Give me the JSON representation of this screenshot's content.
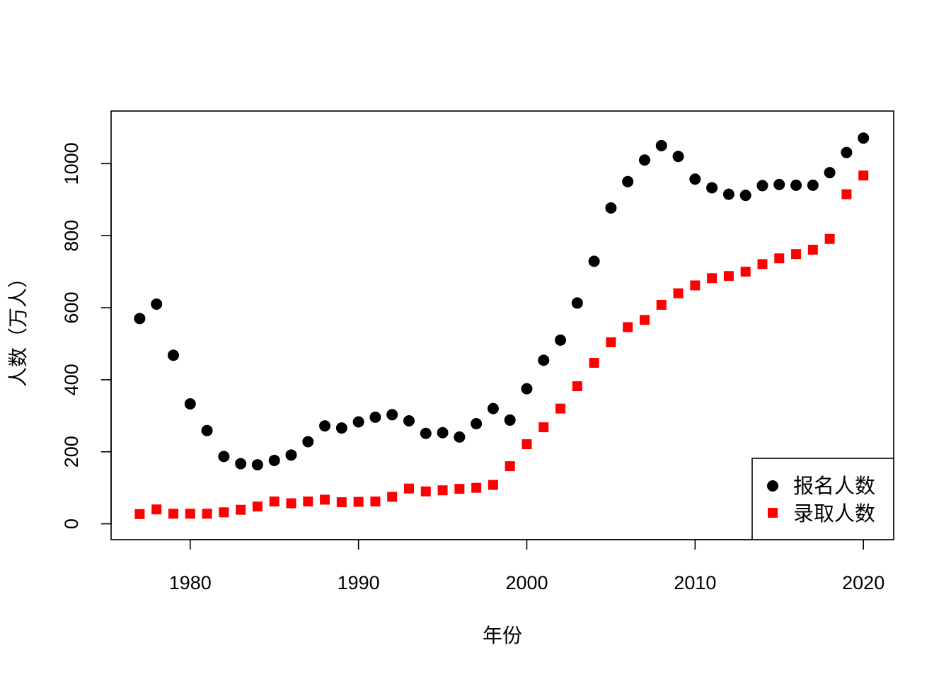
{
  "chart_data": {
    "type": "scatter",
    "title": "",
    "xlabel": "年份",
    "ylabel": "人数（万人）",
    "xlim": [
      1975.3,
      2021.8
    ],
    "ylim": [
      -44,
      1146
    ],
    "xticks": [
      1980,
      1990,
      2000,
      2010,
      2020
    ],
    "yticks": [
      0,
      200,
      400,
      600,
      800,
      1000
    ],
    "legend_position": "bottom-right",
    "x": [
      1977,
      1978,
      1979,
      1980,
      1981,
      1982,
      1983,
      1984,
      1985,
      1986,
      1987,
      1988,
      1989,
      1990,
      1991,
      1992,
      1993,
      1994,
      1995,
      1996,
      1997,
      1998,
      1999,
      2000,
      2001,
      2002,
      2003,
      2004,
      2005,
      2006,
      2007,
      2008,
      2009,
      2010,
      2011,
      2012,
      2013,
      2014,
      2015,
      2016,
      2017,
      2018,
      2019,
      2020
    ],
    "series": [
      {
        "name": "报名人数",
        "marker": "circle",
        "color": "#000000",
        "values": [
          570,
          610,
          468,
          333,
          259,
          187,
          167,
          164,
          176,
          191,
          228,
          272,
          266,
          283,
          296,
          303,
          286,
          251,
          253,
          241,
          278,
          320,
          288,
          375,
          454,
          510,
          613,
          729,
          877,
          950,
          1010,
          1050,
          1020,
          957,
          933,
          915,
          912,
          939,
          942,
          940,
          940,
          975,
          1031,
          1071
        ]
      },
      {
        "name": "录取人数",
        "marker": "square",
        "color": "#ff0000",
        "values": [
          27,
          40,
          28,
          28,
          28,
          32,
          39,
          48,
          62,
          57,
          62,
          67,
          60,
          61,
          62,
          75,
          98,
          90,
          93,
          97,
          100,
          108,
          160,
          221,
          268,
          320,
          382,
          447,
          504,
          546,
          566,
          608,
          640,
          662,
          682,
          688,
          700,
          721,
          737,
          749,
          761,
          791,
          915,
          967
        ]
      }
    ]
  }
}
